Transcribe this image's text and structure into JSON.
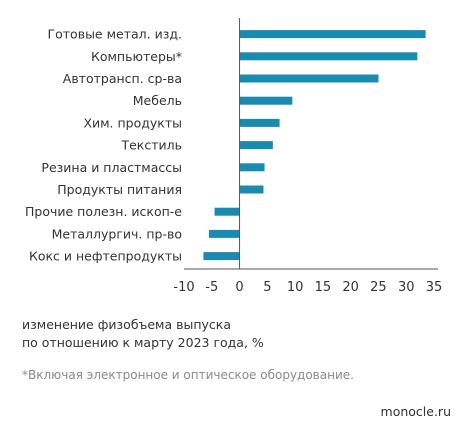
{
  "chart_data": {
    "type": "bar",
    "orientation": "horizontal",
    "categories": [
      "Готовые метал. изд.",
      "Компьютеры*",
      "Автотрансп. ср-ва",
      "Мебель",
      "Хим. продукты",
      "Текстиль",
      "Резина и пластмассы",
      "Продукты питания",
      "Прочие полезн. ископ-е",
      "Металлургич. пр-во",
      "Кокс и нефтепродукты"
    ],
    "values": [
      33.5,
      32,
      25,
      9.5,
      7.2,
      6,
      4.5,
      4.3,
      -4.5,
      -5.5,
      -6.5
    ],
    "xlabel": "изменение физобъема выпуска\nпо отношению к марту 2023 года, %",
    "xlim": [
      -10,
      35
    ],
    "xticks": [
      -10,
      -5,
      0,
      5,
      10,
      15,
      20,
      25,
      30,
      35
    ],
    "grid": false,
    "bar_color": "#1a8bb0"
  },
  "xlabel_line1": "изменение физобъема выпуска",
  "xlabel_line2": "по отношению к марту 2023 года, %",
  "footnote": "*Включая электронное и оптическое оборудование.",
  "source": "monocle.ru",
  "colors": {
    "bar": "#1a8bb0",
    "axis": "#555555"
  }
}
